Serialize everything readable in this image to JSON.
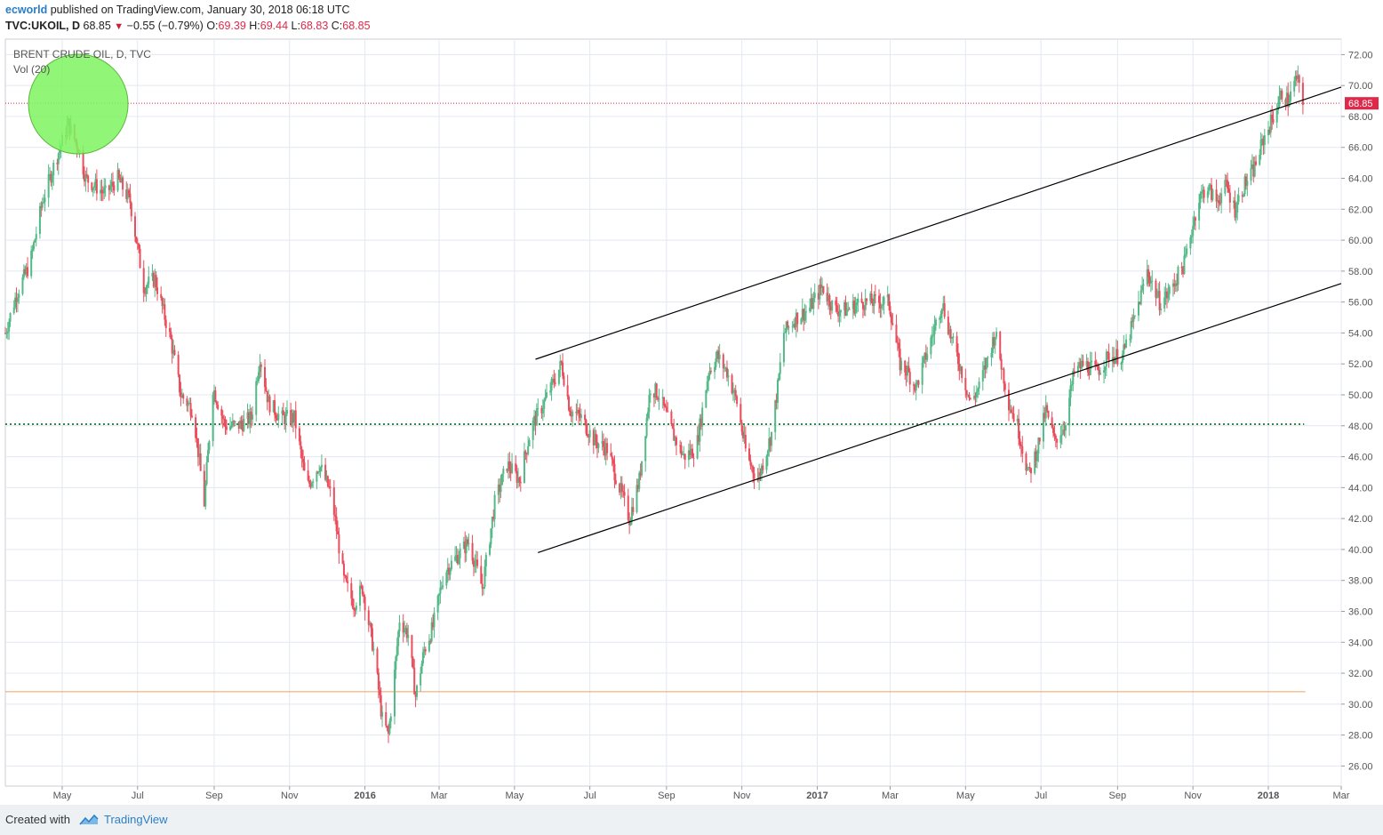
{
  "header": {
    "author": "ecworld",
    "published_text": "published on TradingView.com, January 30, 2018 06:18 UTC",
    "symbol": "TVC:UKOIL, D",
    "last": "68.85",
    "change": "−0.55 (−0.79%)",
    "open_label": "O:",
    "open": "69.39",
    "high_label": "H:",
    "high": "69.44",
    "low_label": "L:",
    "low": "68.83",
    "close_label": "C:",
    "close": "68.85"
  },
  "legend": {
    "title": "BRENT CRUDE OIL, D, TVC",
    "volume": "Vol (20)"
  },
  "footer": {
    "created_with": "Created with",
    "brand": "TradingView"
  },
  "colors": {
    "up": "#53b987",
    "down": "#eb4d5c",
    "grid": "#e3e8f1",
    "channel": "#000000",
    "support_green": "#2e8b3f",
    "support_orange": "#f0a060",
    "price_line": "#e0294a",
    "circle_fill": "#7ef45f"
  },
  "chart_data": {
    "type": "candlestick",
    "y_axis": {
      "range": [
        24.7,
        73.0
      ],
      "tick_labels": [
        "72.00",
        "70.00",
        "68.00",
        "66.00",
        "64.00",
        "62.00",
        "60.00",
        "58.00",
        "56.00",
        "54.00",
        "52.00",
        "50.00",
        "48.00",
        "46.00",
        "44.00",
        "42.00",
        "40.00",
        "38.00",
        "36.00",
        "34.00",
        "32.00",
        "30.00",
        "28.00",
        "26.00"
      ],
      "current_price": "68.85",
      "position": "right"
    },
    "x_axis": {
      "range": [
        "2015-03-16",
        "2018-03-01"
      ],
      "ticks": [
        {
          "date": "2015-05-01",
          "label": "May",
          "bold": false
        },
        {
          "date": "2015-07-01",
          "label": "Jul",
          "bold": false
        },
        {
          "date": "2015-09-01",
          "label": "Sep",
          "bold": false
        },
        {
          "date": "2015-11-01",
          "label": "Nov",
          "bold": false
        },
        {
          "date": "2016-01-01",
          "label": "2016",
          "bold": true
        },
        {
          "date": "2016-03-01",
          "label": "Mar",
          "bold": false
        },
        {
          "date": "2016-05-01",
          "label": "May",
          "bold": false
        },
        {
          "date": "2016-07-01",
          "label": "Jul",
          "bold": false
        },
        {
          "date": "2016-09-01",
          "label": "Sep",
          "bold": false
        },
        {
          "date": "2016-11-01",
          "label": "Nov",
          "bold": false
        },
        {
          "date": "2017-01-01",
          "label": "2017",
          "bold": true
        },
        {
          "date": "2017-03-01",
          "label": "Mar",
          "bold": false
        },
        {
          "date": "2017-05-01",
          "label": "May",
          "bold": false
        },
        {
          "date": "2017-07-01",
          "label": "Jul",
          "bold": false
        },
        {
          "date": "2017-09-01",
          "label": "Sep",
          "bold": false
        },
        {
          "date": "2017-11-01",
          "label": "Nov",
          "bold": false
        },
        {
          "date": "2018-01-01",
          "label": "2018",
          "bold": true
        },
        {
          "date": "2018-03-01",
          "label": "Mar",
          "bold": false
        }
      ]
    },
    "price_anchors": [
      [
        "2015-03-16",
        54.0
      ],
      [
        "2015-03-25",
        56.5
      ],
      [
        "2015-04-05",
        58.5
      ],
      [
        "2015-04-15",
        62.5
      ],
      [
        "2015-04-25",
        65.0
      ],
      [
        "2015-05-06",
        67.5
      ],
      [
        "2015-05-14",
        66.0
      ],
      [
        "2015-05-20",
        64.0
      ],
      [
        "2015-05-28",
        63.5
      ],
      [
        "2015-06-05",
        63.0
      ],
      [
        "2015-06-15",
        64.0
      ],
      [
        "2015-06-25",
        62.5
      ],
      [
        "2015-07-06",
        57.0
      ],
      [
        "2015-07-15",
        57.5
      ],
      [
        "2015-07-28",
        53.5
      ],
      [
        "2015-08-05",
        50.0
      ],
      [
        "2015-08-15",
        49.0
      ],
      [
        "2015-08-24",
        43.0
      ],
      [
        "2015-08-31",
        50.5
      ],
      [
        "2015-09-10",
        48.0
      ],
      [
        "2015-09-20",
        48.0
      ],
      [
        "2015-10-01",
        48.5
      ],
      [
        "2015-10-08",
        52.5
      ],
      [
        "2015-10-15",
        49.5
      ],
      [
        "2015-10-25",
        48.5
      ],
      [
        "2015-11-05",
        48.5
      ],
      [
        "2015-11-15",
        44.0
      ],
      [
        "2015-11-25",
        45.5
      ],
      [
        "2015-12-05",
        43.5
      ],
      [
        "2015-12-15",
        38.0
      ],
      [
        "2015-12-23",
        36.5
      ],
      [
        "2015-12-30",
        37.5
      ],
      [
        "2016-01-08",
        33.5
      ],
      [
        "2016-01-15",
        29.0
      ],
      [
        "2016-01-20",
        28.0
      ],
      [
        "2016-01-25",
        32.0
      ],
      [
        "2016-01-29",
        35.5
      ],
      [
        "2016-02-05",
        34.5
      ],
      [
        "2016-02-11",
        30.5
      ],
      [
        "2016-02-18",
        33.5
      ],
      [
        "2016-02-25",
        35.0
      ],
      [
        "2016-03-05",
        38.5
      ],
      [
        "2016-03-15",
        39.5
      ],
      [
        "2016-03-25",
        40.5
      ],
      [
        "2016-04-05",
        37.5
      ],
      [
        "2016-04-15",
        43.0
      ],
      [
        "2016-04-25",
        45.5
      ],
      [
        "2016-05-05",
        44.5
      ],
      [
        "2016-05-15",
        48.0
      ],
      [
        "2016-05-25",
        49.5
      ],
      [
        "2016-06-08",
        52.0
      ],
      [
        "2016-06-15",
        49.0
      ],
      [
        "2016-06-24",
        48.5
      ],
      [
        "2016-07-05",
        47.0
      ],
      [
        "2016-07-15",
        46.5
      ],
      [
        "2016-07-25",
        44.0
      ],
      [
        "2016-08-02",
        42.0
      ],
      [
        "2016-08-10",
        44.5
      ],
      [
        "2016-08-19",
        50.5
      ],
      [
        "2016-08-26",
        50.0
      ],
      [
        "2016-09-06",
        47.5
      ],
      [
        "2016-09-15",
        46.0
      ],
      [
        "2016-09-25",
        46.5
      ],
      [
        "2016-10-05",
        51.5
      ],
      [
        "2016-10-12",
        52.5
      ],
      [
        "2016-10-20",
        51.5
      ],
      [
        "2016-10-28",
        49.5
      ],
      [
        "2016-11-05",
        46.0
      ],
      [
        "2016-11-14",
        44.5
      ],
      [
        "2016-11-25",
        47.5
      ],
      [
        "2016-11-30",
        50.5
      ],
      [
        "2016-12-05",
        54.0
      ],
      [
        "2016-12-15",
        55.0
      ],
      [
        "2016-12-25",
        55.5
      ],
      [
        "2017-01-05",
        57.0
      ],
      [
        "2017-01-15",
        55.5
      ],
      [
        "2017-01-25",
        55.5
      ],
      [
        "2017-02-05",
        56.0
      ],
      [
        "2017-02-15",
        56.0
      ],
      [
        "2017-02-28",
        56.0
      ],
      [
        "2017-03-09",
        52.0
      ],
      [
        "2017-03-15",
        51.5
      ],
      [
        "2017-03-22",
        50.5
      ],
      [
        "2017-04-01",
        53.0
      ],
      [
        "2017-04-12",
        56.0
      ],
      [
        "2017-04-20",
        53.5
      ],
      [
        "2017-04-28",
        51.5
      ],
      [
        "2017-05-05",
        49.5
      ],
      [
        "2017-05-12",
        50.5
      ],
      [
        "2017-05-25",
        54.0
      ],
      [
        "2017-06-05",
        49.5
      ],
      [
        "2017-06-12",
        48.0
      ],
      [
        "2017-06-21",
        44.8
      ],
      [
        "2017-06-28",
        46.5
      ],
      [
        "2017-07-05",
        49.0
      ],
      [
        "2017-07-12",
        47.0
      ],
      [
        "2017-07-20",
        48.0
      ],
      [
        "2017-07-28",
        51.5
      ],
      [
        "2017-08-05",
        52.0
      ],
      [
        "2017-08-15",
        51.5
      ],
      [
        "2017-08-25",
        52.5
      ],
      [
        "2017-09-05",
        52.5
      ],
      [
        "2017-09-15",
        55.0
      ],
      [
        "2017-09-25",
        58.0
      ],
      [
        "2017-10-05",
        56.0
      ],
      [
        "2017-10-12",
        56.5
      ],
      [
        "2017-10-25",
        58.5
      ],
      [
        "2017-11-05",
        62.5
      ],
      [
        "2017-11-12",
        63.5
      ],
      [
        "2017-11-20",
        62.5
      ],
      [
        "2017-11-28",
        63.5
      ],
      [
        "2017-12-05",
        62.0
      ],
      [
        "2017-12-12",
        63.5
      ],
      [
        "2017-12-20",
        64.5
      ],
      [
        "2017-12-28",
        66.5
      ],
      [
        "2018-01-05",
        68.0
      ],
      [
        "2018-01-12",
        69.5
      ],
      [
        "2018-01-17",
        69.0
      ],
      [
        "2018-01-24",
        70.5
      ],
      [
        "2018-01-29",
        68.85
      ]
    ],
    "lines": [
      {
        "name": "upper-channel",
        "from": [
          "2016-05-18",
          52.3
        ],
        "to": [
          "2018-03-01",
          69.9
        ]
      },
      {
        "name": "lower-channel",
        "from": [
          "2016-05-20",
          39.8
        ],
        "to": [
          "2018-03-01",
          57.2
        ]
      },
      {
        "name": "support-48",
        "style": "dotted",
        "from": [
          "2015-03-16",
          48.1
        ],
        "to": [
          "2018-01-30",
          48.1
        ]
      },
      {
        "name": "support-30.8",
        "style": "solid",
        "from": [
          "2015-03-16",
          30.8
        ],
        "to": [
          "2018-01-31",
          30.8
        ]
      }
    ],
    "highlight": {
      "name": "highlight-circle",
      "date": "2015-05-14",
      "price": 68.8
    }
  }
}
